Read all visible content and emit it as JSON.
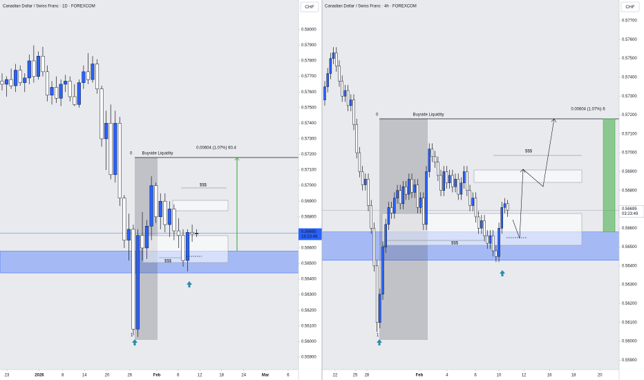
{
  "chart_data": [
    {
      "type": "candlestick",
      "title": "Canadian Dollar / Swiss Franc · 1D · FOREXCOM",
      "currency": "CHF",
      "up_color": "#2962ff",
      "down_color": "#ffffff",
      "open": [
        0.5767,
        0.5765,
        0.5768,
        0.5764,
        0.5774,
        0.5766,
        0.5769,
        0.578,
        0.577,
        0.5783,
        0.5773,
        0.5758,
        0.5763,
        0.5756,
        0.5765,
        0.5767,
        0.5757,
        0.5752,
        0.5766,
        0.5773,
        0.5768,
        0.5778,
        0.5762,
        0.573,
        0.574,
        0.5707,
        0.574,
        0.5692,
        0.5665,
        0.5672,
        0.5608,
        0.5668,
        0.566,
        0.5674,
        0.57,
        0.568,
        0.569,
        0.5675,
        0.5685,
        0.5671,
        0.5668,
        0.5652,
        0.567,
        0.5669
      ],
      "high": [
        0.5772,
        0.577,
        0.5775,
        0.5778,
        0.5777,
        0.5772,
        0.5784,
        0.579,
        0.5786,
        0.5789,
        0.5777,
        0.5767,
        0.577,
        0.5768,
        0.5771,
        0.577,
        0.5765,
        0.5768,
        0.5777,
        0.5785,
        0.5783,
        0.5781,
        0.5764,
        0.5748,
        0.5752,
        0.5748,
        0.5744,
        0.5694,
        0.5682,
        0.5675,
        0.5672,
        0.5683,
        0.5678,
        0.5706,
        0.5702,
        0.5695,
        0.5695,
        0.569,
        0.5688,
        0.5679,
        0.5672,
        0.5672,
        0.5675,
        0.5672
      ],
      "low": [
        0.5761,
        0.5757,
        0.5762,
        0.576,
        0.5764,
        0.576,
        0.5765,
        0.5766,
        0.5768,
        0.577,
        0.5754,
        0.5752,
        0.5753,
        0.5751,
        0.576,
        0.5754,
        0.5751,
        0.575,
        0.5762,
        0.5765,
        0.5766,
        0.5759,
        0.5725,
        0.571,
        0.5704,
        0.5702,
        0.5687,
        0.566,
        0.5652,
        0.5604,
        0.5603,
        0.5652,
        0.5653,
        0.5665,
        0.5676,
        0.5672,
        0.567,
        0.5667,
        0.5665,
        0.566,
        0.5648,
        0.5645,
        0.5664,
        0.5667
      ],
      "close": [
        0.5765,
        0.5768,
        0.5764,
        0.5774,
        0.5766,
        0.5769,
        0.578,
        0.577,
        0.5783,
        0.5773,
        0.5758,
        0.5763,
        0.5756,
        0.5765,
        0.5767,
        0.5757,
        0.5752,
        0.5766,
        0.5773,
        0.5768,
        0.5778,
        0.5762,
        0.573,
        0.574,
        0.5707,
        0.574,
        0.5692,
        0.5665,
        0.5672,
        0.5608,
        0.5668,
        0.566,
        0.5674,
        0.57,
        0.568,
        0.569,
        0.5675,
        0.5685,
        0.5671,
        0.5668,
        0.5652,
        0.567,
        0.5669,
        0.56695
      ],
      "xlim": [
        -0.46,
        65.5
      ],
      "xticks": [
        {
          "value": 1.07,
          "label": "23"
        },
        {
          "value": 8.24,
          "label": "2026"
        },
        {
          "value": 13.4,
          "label": "8"
        },
        {
          "value": 18.2,
          "label": "14"
        },
        {
          "value": 23.2,
          "label": "20"
        },
        {
          "value": 28.2,
          "label": "26"
        },
        {
          "value": 34.2,
          "label": "Feb"
        },
        {
          "value": 38.9,
          "label": "6"
        },
        {
          "value": 43.7,
          "label": "12"
        },
        {
          "value": 48.5,
          "label": "18"
        },
        {
          "value": 53.4,
          "label": "24"
        },
        {
          "value": 58.2,
          "label": "Mar"
        },
        {
          "value": 63.2,
          "label": "6"
        }
      ],
      "ylim": [
        0.5582,
        0.5819
      ],
      "yticks": [
        {
          "value": 0.559,
          "label": "0.55900"
        },
        {
          "value": 0.56,
          "label": "0.56000"
        },
        {
          "value": 0.561,
          "label": "0.56100"
        },
        {
          "value": 0.562,
          "label": "0.56200"
        },
        {
          "value": 0.563,
          "label": "0.56300"
        },
        {
          "value": 0.564,
          "label": "0.56400"
        },
        {
          "value": 0.565,
          "label": "0.56500"
        },
        {
          "value": 0.566,
          "label": "0.56600"
        },
        {
          "value": 0.567,
          "label": "0.56700"
        },
        {
          "value": 0.568,
          "label": "0.56800"
        },
        {
          "value": 0.569,
          "label": "0.56900"
        },
        {
          "value": 0.57,
          "label": "0.57000"
        },
        {
          "value": 0.571,
          "label": "0.57100"
        },
        {
          "value": 0.572,
          "label": "0.57200"
        },
        {
          "value": 0.573,
          "label": "0.57300"
        },
        {
          "value": 0.574,
          "label": "0.57400"
        },
        {
          "value": 0.575,
          "label": "0.57500"
        },
        {
          "value": 0.576,
          "label": "0.57600"
        },
        {
          "value": 0.577,
          "label": "0.57700"
        },
        {
          "value": 0.578,
          "label": "0.57800"
        },
        {
          "value": 0.579,
          "label": "0.57900"
        },
        {
          "value": 0.58,
          "label": "0.58000"
        }
      ],
      "last_price": 0.56695,
      "countdown": "19:23:49",
      "zone": [
        0.5644,
        0.5658
      ],
      "liquidity_level": 0.5718,
      "liquidity_label": "Buyside Liquidity",
      "measure_label": "0.00604 (1.07%) 60.4",
      "liquidity_marks": [
        "$$$",
        "$$$"
      ],
      "fib_labels": [
        "0",
        "1"
      ]
    },
    {
      "type": "candlestick",
      "title": "Canadian Dollar / Swiss Franc · 4h · FOREXCOM",
      "currency": "CHF",
      "up_color": "#2962ff",
      "down_color": "#ffffff",
      "open": [
        0.5728,
        0.5735,
        0.5742,
        0.575,
        0.5753,
        0.5746,
        0.5738,
        0.573,
        0.5733,
        0.5725,
        0.5728,
        0.5715,
        0.57,
        0.569,
        0.5683,
        0.5686,
        0.5672,
        0.566,
        0.564,
        0.561,
        0.5625,
        0.565,
        0.5662,
        0.5671,
        0.5668,
        0.5676,
        0.568,
        0.5673,
        0.5682,
        0.5678,
        0.5686,
        0.5679,
        0.5683,
        0.5671,
        0.5676,
        0.5662,
        0.569,
        0.5702,
        0.5698,
        0.5695,
        0.5688,
        0.568,
        0.569,
        0.5684,
        0.5688,
        0.5682,
        0.5686,
        0.5678,
        0.5684,
        0.569,
        0.568,
        0.5672,
        0.5676,
        0.5666,
        0.566,
        0.5664,
        0.5656,
        0.5652,
        0.5656,
        0.5648,
        0.5645,
        0.566,
        0.5671,
        0.5673
      ],
      "high": [
        0.5738,
        0.5745,
        0.5753,
        0.5756,
        0.5756,
        0.5749,
        0.5741,
        0.5736,
        0.5736,
        0.5731,
        0.5731,
        0.5718,
        0.5703,
        0.5693,
        0.5689,
        0.5689,
        0.5675,
        0.5663,
        0.5643,
        0.5628,
        0.5653,
        0.5665,
        0.5674,
        0.5674,
        0.5679,
        0.5683,
        0.5683,
        0.5685,
        0.5685,
        0.5689,
        0.5689,
        0.5686,
        0.5686,
        0.5679,
        0.5679,
        0.5693,
        0.5705,
        0.5705,
        0.5701,
        0.5698,
        0.5691,
        0.5693,
        0.5693,
        0.5691,
        0.5691,
        0.5689,
        0.5689,
        0.5687,
        0.5693,
        0.5693,
        0.5683,
        0.5679,
        0.5679,
        0.5669,
        0.5667,
        0.5667,
        0.5659,
        0.5659,
        0.5659,
        0.5651,
        0.5663,
        0.5674,
        0.5676,
        0.5675
      ],
      "low": [
        0.5725,
        0.5732,
        0.5739,
        0.5747,
        0.5743,
        0.5735,
        0.5727,
        0.5727,
        0.5722,
        0.5722,
        0.5712,
        0.5697,
        0.5687,
        0.568,
        0.568,
        0.5669,
        0.5657,
        0.5637,
        0.5605,
        0.5607,
        0.5622,
        0.5647,
        0.5659,
        0.5665,
        0.5665,
        0.5673,
        0.567,
        0.567,
        0.5675,
        0.5675,
        0.5676,
        0.5676,
        0.5668,
        0.5668,
        0.5659,
        0.5659,
        0.5687,
        0.5695,
        0.5692,
        0.5685,
        0.5677,
        0.5677,
        0.5681,
        0.5681,
        0.5679,
        0.5679,
        0.5675,
        0.5675,
        0.5681,
        0.5677,
        0.5669,
        0.5669,
        0.5663,
        0.5657,
        0.5657,
        0.5653,
        0.5649,
        0.5649,
        0.5645,
        0.5642,
        0.5642,
        0.5657,
        0.5668,
        0.5666
      ],
      "close": [
        0.5735,
        0.5742,
        0.575,
        0.5753,
        0.5746,
        0.5738,
        0.573,
        0.5733,
        0.5725,
        0.5728,
        0.5715,
        0.57,
        0.569,
        0.5683,
        0.5686,
        0.5672,
        0.566,
        0.564,
        0.561,
        0.5625,
        0.565,
        0.5662,
        0.5671,
        0.5668,
        0.5676,
        0.568,
        0.5673,
        0.5682,
        0.5678,
        0.5686,
        0.5679,
        0.5683,
        0.5671,
        0.5676,
        0.5662,
        0.569,
        0.5702,
        0.5698,
        0.5695,
        0.5688,
        0.568,
        0.569,
        0.5684,
        0.5688,
        0.5682,
        0.5686,
        0.5678,
        0.5684,
        0.569,
        0.568,
        0.5672,
        0.5676,
        0.5666,
        0.566,
        0.5664,
        0.5656,
        0.5652,
        0.5656,
        0.5648,
        0.5645,
        0.566,
        0.5671,
        0.5673,
        0.56695
      ],
      "xlim": [
        -0.95,
        101.4
      ],
      "xticks": [
        {
          "value": 3.57,
          "label": "22"
        },
        {
          "value": 10.48,
          "label": "25"
        },
        {
          "value": 14.5,
          "label": "28"
        },
        {
          "value": 32.6,
          "label": "Feb"
        },
        {
          "value": 42.1,
          "label": "4"
        },
        {
          "value": 51.9,
          "label": "6"
        },
        {
          "value": 60,
          "label": "10"
        },
        {
          "value": 68.6,
          "label": "12"
        },
        {
          "value": 77.4,
          "label": "16"
        },
        {
          "value": 85.7,
          "label": "18"
        },
        {
          "value": 94.8,
          "label": "20"
        }
      ],
      "ylim": [
        0.5585,
        0.5781
      ],
      "yticks": [
        {
          "value": 0.559,
          "label": "0.55900"
        },
        {
          "value": 0.56,
          "label": "0.56000"
        },
        {
          "value": 0.561,
          "label": "0.56100"
        },
        {
          "value": 0.562,
          "label": "0.56200"
        },
        {
          "value": 0.563,
          "label": "0.56300"
        },
        {
          "value": 0.564,
          "label": "0.56400"
        },
        {
          "value": 0.565,
          "label": "0.56500"
        },
        {
          "value": 0.566,
          "label": "0.56600"
        },
        {
          "value": 0.567,
          "label": "0.56700"
        },
        {
          "value": 0.568,
          "label": "0.56800"
        },
        {
          "value": 0.569,
          "label": "0.56900"
        },
        {
          "value": 0.57,
          "label": "0.57000"
        },
        {
          "value": 0.571,
          "label": "0.57100"
        },
        {
          "value": 0.572,
          "label": "0.57200"
        },
        {
          "value": 0.573,
          "label": "0.57300"
        },
        {
          "value": 0.574,
          "label": "0.57400"
        },
        {
          "value": 0.575,
          "label": "0.57500"
        },
        {
          "value": 0.576,
          "label": "0.57600"
        },
        {
          "value": 0.577,
          "label": "0.57700"
        }
      ],
      "last_price": 0.56695,
      "countdown": "03:23:49",
      "zone": [
        0.5643,
        0.5658
      ],
      "liquidity_level": 0.5718,
      "liquidity_label": "Buyside Liquidity",
      "measure_label": "0.00604 (1.07%) 6",
      "liquidity_marks": [
        "$$$",
        "$$$"
      ],
      "fib_labels": [
        "0",
        "1"
      ]
    }
  ]
}
